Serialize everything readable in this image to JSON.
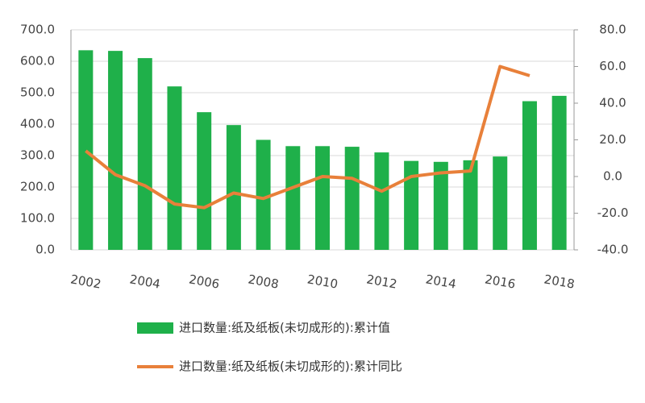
{
  "chart_data": {
    "type": "bar-line",
    "categories": [
      "2002",
      null,
      "2004",
      null,
      "2006",
      null,
      "2008",
      null,
      "2010",
      null,
      "2012",
      null,
      "2014",
      null,
      "2016",
      null,
      "2018"
    ],
    "series": [
      {
        "name": "进口数量:纸及纸板(未切成形的):累计值",
        "type": "bar",
        "color": "#1fb04a",
        "values": [
          635,
          633,
          610,
          520,
          438,
          397,
          350,
          330,
          330,
          328,
          310,
          283,
          280,
          285,
          297,
          473,
          490
        ]
      },
      {
        "name": "进口数量:纸及纸板(未切成形的):累计同比",
        "type": "line",
        "axis": "y2",
        "color": "#e8803a",
        "values": [
          14,
          1,
          -5,
          -15,
          -17,
          -9,
          -12,
          -6,
          0,
          -1,
          -8,
          0,
          2,
          3,
          60,
          55,
          null
        ]
      }
    ],
    "ylim": [
      0,
      700
    ],
    "yticks": [
      {
        "value": 0,
        "label": "0.0"
      },
      {
        "value": 100,
        "label": "100.0"
      },
      {
        "value": 200,
        "label": "200.0"
      },
      {
        "value": 300,
        "label": "300.0"
      },
      {
        "value": 400,
        "label": "400.0"
      },
      {
        "value": 500,
        "label": "500.0"
      },
      {
        "value": 600,
        "label": "600.0"
      },
      {
        "value": 700,
        "label": "700.0"
      }
    ],
    "y2lim": [
      -40,
      80
    ],
    "y2ticks": [
      {
        "value": -40,
        "label": "-40.0"
      },
      {
        "value": -20,
        "label": "-20.0"
      },
      {
        "value": 0,
        "label": "0.0"
      },
      {
        "value": 20,
        "label": "20.0"
      },
      {
        "value": 40,
        "label": "40.0"
      },
      {
        "value": 60,
        "label": "60.0"
      },
      {
        "value": 80,
        "label": "80.0"
      }
    ],
    "grid": true
  }
}
